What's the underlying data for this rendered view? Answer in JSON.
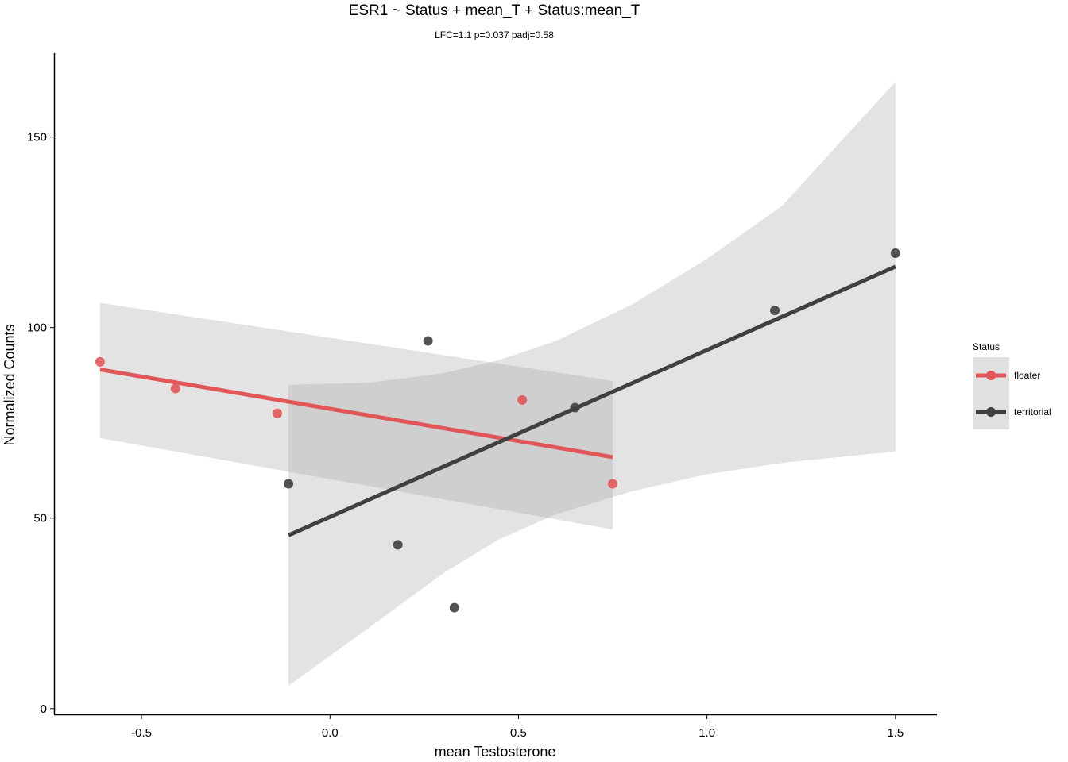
{
  "chart_data": {
    "type": "scatter",
    "title": "ESR1 ~ Status + mean_T + Status:mean_T",
    "subtitle": "LFC=1.1 p=0.037 padj=0.58",
    "xlabel": "mean Testosterone",
    "ylabel": "Normalized Counts",
    "xlim": [
      -0.73,
      1.61
    ],
    "ylim": [
      -1.5,
      172
    ],
    "xticks": [
      -0.5,
      0.0,
      0.5,
      1.0,
      1.5
    ],
    "xtick_labels": [
      "-0.5",
      "0.0",
      "0.5",
      "1.0",
      "1.5"
    ],
    "yticks": [
      0,
      50,
      100,
      150
    ],
    "ytick_labels": [
      "0",
      "50",
      "100",
      "150"
    ],
    "grid": false,
    "legend": {
      "title": "Status",
      "position": "right",
      "entries": [
        "floater",
        "territorial"
      ]
    },
    "series": [
      {
        "name": "floater",
        "color": "#e15759",
        "points": [
          {
            "x": -0.61,
            "y": 91
          },
          {
            "x": -0.41,
            "y": 84
          },
          {
            "x": -0.14,
            "y": 77.5
          },
          {
            "x": 0.51,
            "y": 81
          },
          {
            "x": 0.75,
            "y": 59
          }
        ],
        "fit": {
          "x": [
            -0.61,
            0.75
          ],
          "y": [
            89,
            66
          ]
        },
        "ci_band": {
          "x": [
            -0.61,
            0.75
          ],
          "upper": [
            106.5,
            86
          ],
          "lower": [
            71,
            47
          ]
        }
      },
      {
        "name": "territorial",
        "color": "#404040",
        "points": [
          {
            "x": -0.11,
            "y": 59
          },
          {
            "x": 0.18,
            "y": 43
          },
          {
            "x": 0.26,
            "y": 96.5
          },
          {
            "x": 0.33,
            "y": 26.5
          },
          {
            "x": 0.65,
            "y": 79
          },
          {
            "x": 1.18,
            "y": 104.5
          },
          {
            "x": 1.5,
            "y": 119.5
          }
        ],
        "fit": {
          "x": [
            -0.11,
            1.5
          ],
          "y": [
            45.5,
            116
          ]
        },
        "ci_band": {
          "x": [
            -0.11,
            0.1,
            0.3,
            0.45,
            0.6,
            0.8,
            1.0,
            1.2,
            1.5
          ],
          "upper": [
            85,
            85.5,
            88,
            91.5,
            96.5,
            106,
            118,
            132,
            164.5
          ],
          "lower": [
            6,
            21,
            35.5,
            44.5,
            51,
            57,
            61.5,
            64.5,
            67.5
          ]
        }
      }
    ]
  }
}
